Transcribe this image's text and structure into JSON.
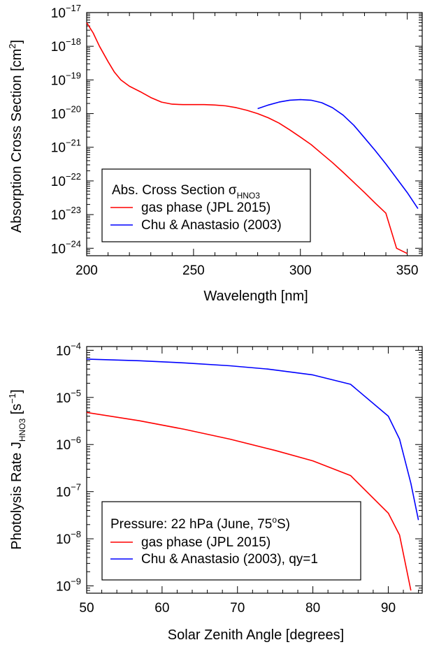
{
  "chart_data": [
    {
      "type": "line",
      "yscale": "log",
      "xlabel": "Wavelength [nm]",
      "ylabel": "Absorption Cross Section [cm",
      "ylabel_sup": "2",
      "ylabel_close": "]",
      "xlim": [
        200,
        357
      ],
      "ylim": [
        6e-25,
        1e-17
      ],
      "xticks": [
        200,
        250,
        300,
        350
      ],
      "xtick_labels": [
        "200",
        "250",
        "300",
        "350"
      ],
      "yticks": [
        -17,
        -18,
        -19,
        -20,
        -21,
        -22,
        -23,
        -24
      ],
      "ytick_base": "10",
      "ytick_exponents": [
        "−17",
        "−18",
        "−19",
        "−20",
        "−21",
        "−22",
        "−23",
        "−24"
      ],
      "legend": {
        "title": "Abs. Cross Section σ",
        "title_sub": "HNO3",
        "position": "bottom-left"
      },
      "series": [
        {
          "name": "gas phase (JPL 2015)",
          "color": "#ff0000",
          "x": [
            200,
            203,
            206,
            210,
            213,
            216,
            220,
            225,
            230,
            235,
            240,
            245,
            250,
            255,
            260,
            265,
            270,
            275,
            280,
            285,
            290,
            295,
            300,
            305,
            310,
            315,
            320,
            325,
            330,
            335,
            340,
            345,
            350
          ],
          "y": [
            5e-18,
            2.5e-18,
            1e-18,
            3.5e-19,
            1.7e-19,
            1e-19,
            6.5e-20,
            4.5e-20,
            3e-20,
            2.2e-20,
            1.9e-20,
            1.85e-20,
            1.85e-20,
            1.85e-20,
            1.8e-20,
            1.7e-20,
            1.5e-20,
            1.25e-20,
            1e-20,
            7.5e-21,
            5.2e-21,
            3.3e-21,
            2e-21,
            1.2e-21,
            6.5e-22,
            3.5e-22,
            1.8e-22,
            9e-23,
            4.5e-23,
            2.2e-23,
            1.1e-23,
            1e-24,
            7e-25
          ]
        },
        {
          "name": "Chu & Anastasio (2003)",
          "color": "#0000ff",
          "x": [
            280,
            285,
            290,
            295,
            300,
            305,
            310,
            315,
            320,
            325,
            330,
            335,
            340,
            345,
            350,
            355
          ],
          "y": [
            1.4e-20,
            1.8e-20,
            2.2e-20,
            2.5e-20,
            2.6e-20,
            2.5e-20,
            2.1e-20,
            1.5e-20,
            9e-21,
            4.5e-21,
            1.9e-21,
            8e-22,
            3.2e-22,
            1.2e-22,
            4.5e-23,
            1.5e-23
          ]
        }
      ]
    },
    {
      "type": "line",
      "yscale": "log",
      "xlabel": "Solar Zenith Angle [degrees]",
      "ylabel": "Photolysis Rate J",
      "ylabel_sub": "HNO3",
      "ylabel_unit": " [s",
      "ylabel_sup": "−1",
      "ylabel_close": "]",
      "xlim": [
        50,
        94.5
      ],
      "ylim": [
        7e-10,
        0.00012
      ],
      "xticks": [
        50,
        60,
        70,
        80,
        90
      ],
      "xtick_labels": [
        "50",
        "60",
        "70",
        "80",
        "90"
      ],
      "yticks": [
        -4,
        -5,
        -6,
        -7,
        -8,
        -9
      ],
      "ytick_base": "10",
      "ytick_exponents": [
        "−4",
        "−5",
        "−6",
        "−7",
        "−8",
        "−9"
      ],
      "legend": {
        "title": "Pressure:  22 hPa (June, 75",
        "title_sup": "o",
        "title_end": "S)",
        "position": "bottom-left"
      },
      "series": [
        {
          "name": "gas phase (JPL 2015)",
          "color": "#ff0000",
          "x": [
            50,
            57,
            63,
            69,
            75,
            80,
            85,
            90,
            91.5,
            93
          ],
          "y": [
            4.8e-06,
            3.2e-06,
            2.1e-06,
            1.3e-06,
            7.5e-07,
            4.5e-07,
            2.2e-07,
            3.5e-08,
            1.2e-08,
            8e-10
          ]
        },
        {
          "name": "Chu & Anastasio (2003), qy=1",
          "color": "#0000ff",
          "x": [
            50,
            57,
            63,
            69,
            74,
            80,
            85,
            90,
            91.5,
            93,
            94
          ],
          "y": [
            6.5e-05,
            6e-05,
            5.4e-05,
            4.7e-05,
            4e-05,
            3e-05,
            1.9e-05,
            4e-06,
            1.3e-06,
            1.5e-07,
            2.5e-08
          ]
        }
      ]
    }
  ]
}
